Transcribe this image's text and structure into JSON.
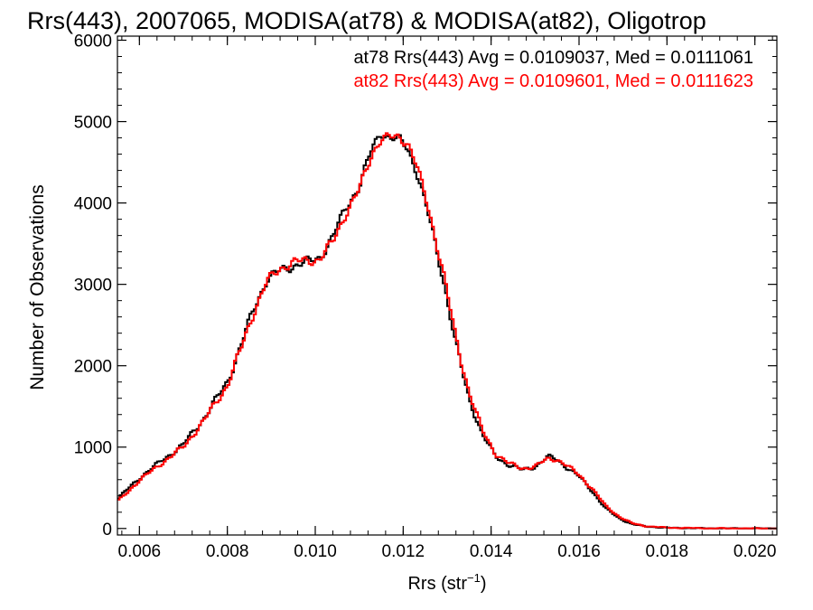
{
  "colors": {
    "at78": "#000000",
    "at82": "#ff0000",
    "axis": "#000000",
    "background": "#ffffff"
  },
  "chart_data": {
    "type": "line",
    "title": "Rrs(443), 2007065, MODISA(at78) & MODISA(at82), Oligotrop",
    "xlabel_main": "Rrs (str",
    "xlabel_sup": "−1",
    "xlabel_close": ")",
    "ylabel": "Number of Observations",
    "xlim": [
      0.0055,
      0.0205
    ],
    "ylim": [
      -80,
      6050
    ],
    "xticks": [
      0.006,
      0.008,
      0.01,
      0.012,
      0.014,
      0.016,
      0.018,
      0.02
    ],
    "xtick_labels": [
      "0.006",
      "0.008",
      "0.010",
      "0.012",
      "0.014",
      "0.016",
      "0.018",
      "0.020"
    ],
    "yticks": [
      0,
      1000,
      2000,
      3000,
      4000,
      5000,
      6000
    ],
    "ytick_labels": [
      "0",
      "1000",
      "2000",
      "3000",
      "4000",
      "5000",
      "6000"
    ],
    "grid": false,
    "legend_placement": "top-right",
    "annotations": {
      "at78": "at78 Rrs(443) Avg = 0.0109037, Med = 0.0111061",
      "at82": "at82 Rrs(443) Avg = 0.0109601, Med = 0.0111623"
    },
    "series": [
      {
        "color": "#000000",
        "x": [
          0.0055,
          0.006,
          0.0065,
          0.007,
          0.0075,
          0.008,
          0.0083,
          0.0086,
          0.0089,
          0.0092,
          0.0095,
          0.0098,
          0.0101,
          0.0104,
          0.0107,
          0.011,
          0.0113,
          0.0115,
          0.0117,
          0.0119,
          0.0121,
          0.0123,
          0.0126,
          0.0129,
          0.0132,
          0.0135,
          0.0138,
          0.0141,
          0.0144,
          0.0147,
          0.015,
          0.0153,
          0.0155,
          0.0157,
          0.016,
          0.0163,
          0.0166,
          0.0169,
          0.0172,
          0.0175,
          0.018,
          0.019,
          0.0205
        ],
        "values": [
          360,
          620,
          830,
          1030,
          1380,
          1800,
          2230,
          2700,
          3060,
          3170,
          3230,
          3270,
          3330,
          3580,
          3950,
          4200,
          4680,
          4880,
          4790,
          4780,
          4680,
          4400,
          3800,
          3100,
          2250,
          1600,
          1150,
          890,
          780,
          720,
          760,
          880,
          850,
          760,
          640,
          460,
          250,
          130,
          55,
          25,
          8,
          2,
          0
        ]
      },
      {
        "color": "#ff0000",
        "x": [
          0.0055,
          0.006,
          0.0065,
          0.007,
          0.0075,
          0.008,
          0.0083,
          0.0086,
          0.0089,
          0.0092,
          0.0095,
          0.0098,
          0.0101,
          0.0104,
          0.0107,
          0.011,
          0.0113,
          0.0115,
          0.0117,
          0.0119,
          0.0121,
          0.0123,
          0.0126,
          0.0129,
          0.0132,
          0.0135,
          0.0138,
          0.0141,
          0.0144,
          0.0147,
          0.015,
          0.0153,
          0.0155,
          0.0157,
          0.016,
          0.0163,
          0.0166,
          0.0169,
          0.0172,
          0.0175,
          0.018,
          0.019,
          0.0205
        ],
        "values": [
          330,
          590,
          800,
          1000,
          1350,
          1760,
          2190,
          2660,
          3030,
          3200,
          3270,
          3290,
          3310,
          3520,
          3880,
          4160,
          4620,
          4790,
          4800,
          4810,
          4750,
          4470,
          3880,
          3180,
          2330,
          1680,
          1200,
          920,
          800,
          740,
          760,
          860,
          850,
          780,
          660,
          490,
          280,
          150,
          65,
          30,
          10,
          2,
          0
        ]
      }
    ]
  }
}
